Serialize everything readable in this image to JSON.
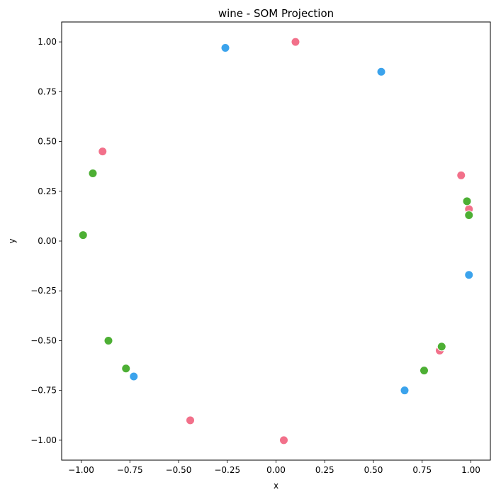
{
  "chart_data": {
    "type": "scatter",
    "title": "wine - SOM Projection",
    "xlabel": "x",
    "ylabel": "y",
    "xlim": [
      -1.1,
      1.1
    ],
    "ylim": [
      -1.1,
      1.1
    ],
    "xticks": [
      -1.0,
      -0.75,
      -0.5,
      -0.25,
      0.0,
      0.25,
      0.5,
      0.75,
      1.0
    ],
    "xtick_labels": [
      "−1.00",
      "−0.75",
      "−0.50",
      "−0.25",
      "0.00",
      "0.25",
      "0.50",
      "0.75",
      "1.00"
    ],
    "yticks": [
      -1.0,
      -0.75,
      -0.5,
      -0.25,
      0.0,
      0.25,
      0.5,
      0.75,
      1.0
    ],
    "ytick_labels": [
      "−1.00",
      "−0.75",
      "−0.50",
      "−0.25",
      "0.00",
      "0.25",
      "0.50",
      "0.75",
      "1.00"
    ],
    "grid": false,
    "legend": "none",
    "series": [
      {
        "color": "#f2708a",
        "points": [
          {
            "x": 0.1,
            "y": 1.0
          },
          {
            "x": -0.89,
            "y": 0.45
          },
          {
            "x": 0.95,
            "y": 0.33
          },
          {
            "x": 0.99,
            "y": 0.16
          },
          {
            "x": 0.84,
            "y": -0.55
          },
          {
            "x": -0.44,
            "y": -0.9
          },
          {
            "x": 0.04,
            "y": -1.0
          }
        ]
      },
      {
        "color": "#4daf34",
        "points": [
          {
            "x": -0.94,
            "y": 0.34
          },
          {
            "x": -0.99,
            "y": 0.03
          },
          {
            "x": 0.98,
            "y": 0.2
          },
          {
            "x": 0.99,
            "y": 0.13
          },
          {
            "x": -0.86,
            "y": -0.5
          },
          {
            "x": -0.77,
            "y": -0.64
          },
          {
            "x": 0.85,
            "y": -0.53
          },
          {
            "x": 0.76,
            "y": -0.65
          }
        ]
      },
      {
        "color": "#3ba3ec",
        "points": [
          {
            "x": -0.26,
            "y": 0.97
          },
          {
            "x": 0.54,
            "y": 0.85
          },
          {
            "x": 0.99,
            "y": -0.17
          },
          {
            "x": -0.73,
            "y": -0.68
          },
          {
            "x": 0.66,
            "y": -0.75
          }
        ]
      }
    ]
  }
}
